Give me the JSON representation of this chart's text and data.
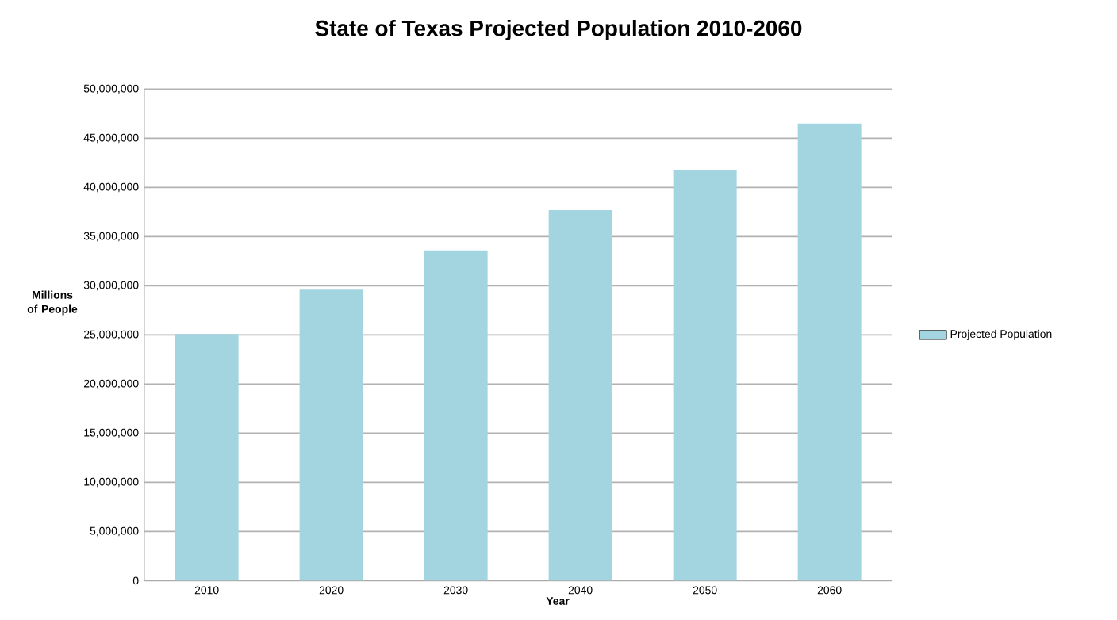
{
  "chart_data": {
    "type": "bar",
    "title": "State of Texas Projected Population 2010-2060",
    "xlabel": "Year",
    "ylabel": "Millions of People",
    "categories": [
      "2010",
      "2020",
      "2030",
      "2040",
      "2050",
      "2060"
    ],
    "series": [
      {
        "name": "Projected Population",
        "color": "#a3d5e1",
        "values": [
          25100000,
          29600000,
          33600000,
          37700000,
          41800000,
          46500000
        ]
      }
    ],
    "ylim": [
      0,
      50000000
    ],
    "yticks": [
      {
        "value": 0,
        "label": "0"
      },
      {
        "value": 5000000,
        "label": "5,000,000"
      },
      {
        "value": 10000000,
        "label": "10,000,000"
      },
      {
        "value": 15000000,
        "label": "15,000,000"
      },
      {
        "value": 20000000,
        "label": "20,000,000"
      },
      {
        "value": 25000000,
        "label": "25,000,000"
      },
      {
        "value": 30000000,
        "label": "30,000,000"
      },
      {
        "value": 35000000,
        "label": "35,000,000"
      },
      {
        "value": 40000000,
        "label": "40,000,000"
      },
      {
        "value": 45000000,
        "label": "45,000,000"
      },
      {
        "value": 50000000,
        "label": "50,000,000"
      }
    ],
    "grid": "y",
    "legend": "right"
  }
}
